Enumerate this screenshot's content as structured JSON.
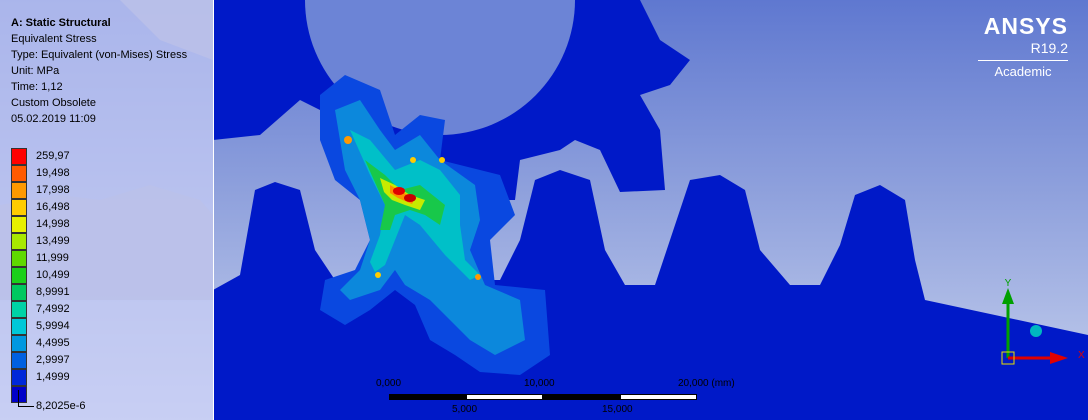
{
  "info": {
    "title": "A: Static Structural",
    "lines": [
      "Equivalent Stress",
      "Type: Equivalent (von-Mises) Stress",
      "Unit: MPa",
      "Time: 1,12",
      "Custom Obsolete",
      "05.02.2019 11:09"
    ]
  },
  "legend": {
    "max_label": "259,97",
    "levels": [
      {
        "label": "259,97",
        "color": "#ff0000"
      },
      {
        "label": "19,498",
        "color": "#ff5a00"
      },
      {
        "label": "17,998",
        "color": "#ff9900"
      },
      {
        "label": "16,498",
        "color": "#ffcc00"
      },
      {
        "label": "14,998",
        "color": "#e7f000"
      },
      {
        "label": "13,499",
        "color": "#a8e800"
      },
      {
        "label": "11,999",
        "color": "#5fd800"
      },
      {
        "label": "10,499",
        "color": "#1bd01a"
      },
      {
        "label": "8,9991",
        "color": "#00c860"
      },
      {
        "label": "7,4992",
        "color": "#00d2a6"
      },
      {
        "label": "5,9994",
        "color": "#00c8d8"
      },
      {
        "label": "4,4995",
        "color": "#0098e0"
      },
      {
        "label": "2,9997",
        "color": "#0060e0"
      },
      {
        "label": "1,4999",
        "color": "#0028d8"
      }
    ],
    "min_label": "8,2025e-6",
    "min_color": "#0000c8"
  },
  "brand": {
    "name": "ANSYS",
    "version": "R19.2",
    "edition": "Academic"
  },
  "scale": {
    "top_labels": [
      "0,000",
      "10,000",
      "20,000 (mm)"
    ],
    "bottom_labels": [
      "5,000",
      "15,000"
    ]
  },
  "triad": {
    "y_label": "Y",
    "x_label": "X",
    "y_color": "#00a000",
    "x_color": "#e00000",
    "z_ball_color": "#00b8c0"
  }
}
